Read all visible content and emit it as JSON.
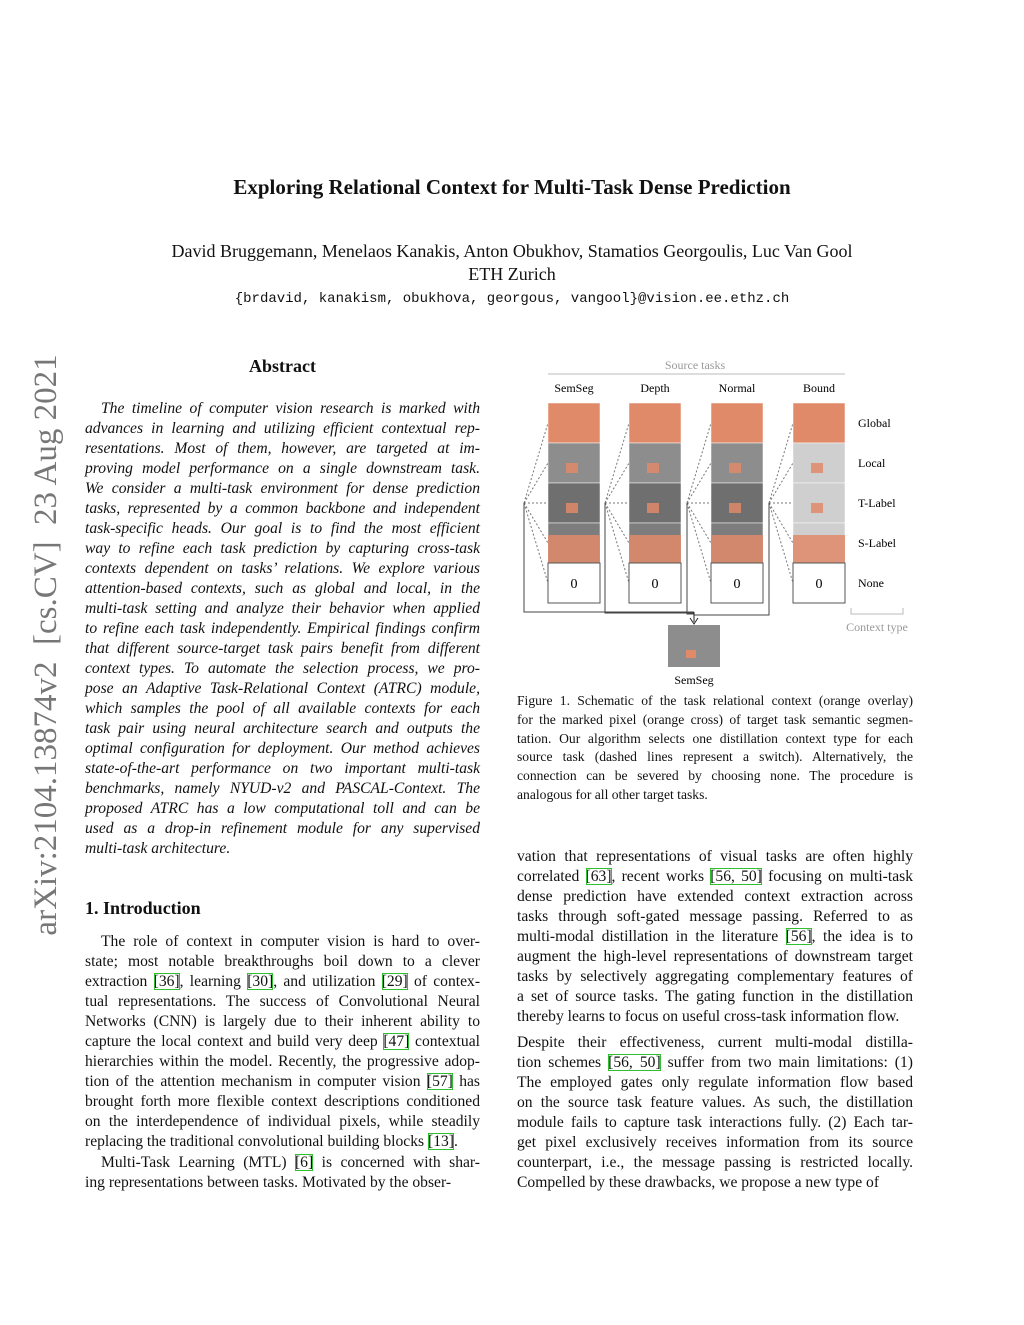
{
  "margin_note": "arXiv:2104.13874v2  [cs.CV]  23 Aug 2021",
  "header": {
    "title": "Exploring Relational Context for Multi-Task Dense Prediction",
    "authors": "David Bruggemann, Menelaos Kanakis, Anton Obukhov, Stamatios Georgoulis, Luc Van Gool",
    "affiliation": "ETH Zurich",
    "emails": "{brdavid, kanakism, obukhova, georgous, vangool}@vision.ee.ethz.ch"
  },
  "abstract": {
    "heading": "Abstract",
    "paragraphs": [
      [
        "The timeline of computer vision research is marked with",
        "advances in learning and utilizing efficient contextual rep-",
        "resentations. Most of them, however, are targeted at im-",
        "proving model performance on a single downstream task.",
        "We consider a multi-task environment for dense prediction",
        "tasks, represented by a common backbone and independent",
        "task-specific heads. Our goal is to find the most efficient",
        "way to refine each task prediction by capturing cross-task",
        "contexts dependent on tasks’ relations. We explore various",
        "attention-based contexts, such as global and local, in the",
        "multi-task setting and analyze their behavior when applied",
        "to refine each task independently. Empirical findings confirm",
        "that different source-target task pairs benefit from different",
        "context types. To automate the selection process, we pro-",
        "pose an Adaptive Task-Relational Context (ATRC) module,",
        "which samples the pool of all available contexts for each",
        "task pair using neural architecture search and outputs the",
        "optimal configuration for deployment. Our method achieves",
        "state-of-the-art performance on two important multi-task",
        "benchmarks, namely NYUD-v2 and PASCAL-Context. The",
        "proposed ATRC has a low computational toll and can be",
        "used as a drop-in refinement module for any supervised",
        "multi-task architecture."
      ]
    ]
  },
  "introduction": {
    "heading": "1. Introduction",
    "paragraphs": [
      [
        "The role of context in computer vision is hard to over-",
        "state; most notable breakthroughs boil down to a clever",
        "extraction [36], learning [30], and utilization [29] of contex-",
        "tual representations. The success of Convolutional Neural",
        "Networks (CNN) is largely due to their inherent ability to",
        "capture the local context and build very deep [47] contextual",
        "hierarchies within the model. Recently, the progressive adop-",
        "tion of the attention mechanism in computer vision [57] has",
        "brought forth more flexible context descriptions conditioned",
        "on the interdependence of individual pixels, while steadily",
        "replacing the traditional convolutional building blocks [13]."
      ],
      [
        "Multi-Task Learning (MTL) [6] is concerned with shar-",
        "ing representations between tasks. Motivated by the obser-"
      ]
    ]
  },
  "figure": {
    "source_tasks_label": "Source tasks",
    "columns": [
      "SemSeg",
      "Depth",
      "Normal",
      "Bound"
    ],
    "rows": [
      "Global",
      "Local",
      "T-Label",
      "S-Label",
      "None"
    ],
    "none_values": [
      0,
      0,
      0,
      0
    ],
    "context_type_label": "Context type",
    "target_label": "SemSeg",
    "caption": [
      [
        "Figure 1. Schematic of the task relational context (orange overlay)",
        "for the marked pixel (orange cross) of target task semantic segmen-",
        "tation. Our algorithm selects one distillation context type for each",
        "source task (dashed lines represent a switch). Alternatively, the",
        "connection can be severed by choosing none. The procedure is",
        "analogous for all other target tasks."
      ]
    ]
  },
  "right_column": {
    "paragraphs": [
      [
        "vation that representations of visual tasks are often highly",
        "correlated [63], recent works [56, 50] focusing on multi-task",
        "dense prediction have extended context extraction across",
        "tasks through soft-gated message passing. Referred to as",
        "multi-modal distillation in the literature [56], the idea is to",
        "augment the high-level representations of downstream target",
        "tasks by selectively aggregating complementary features of",
        "a set of source tasks. The gating function in the distillation",
        "thereby learns to focus on useful cross-task information flow."
      ],
      [
        "Despite their effectiveness, current multi-modal distilla-",
        "tion schemes [56, 50] suffer from two main limitations: (1)",
        "The employed gates only regulate information flow based",
        "on the source task feature values. As such, the distillation",
        "module fails to capture task interactions fully. (2) Each tar-",
        "get pixel exclusively receives information from its source",
        "counterpart, i.e., the message passing is restricted locally.",
        "Compelled by these drawbacks, we propose a new type of"
      ]
    ]
  }
}
